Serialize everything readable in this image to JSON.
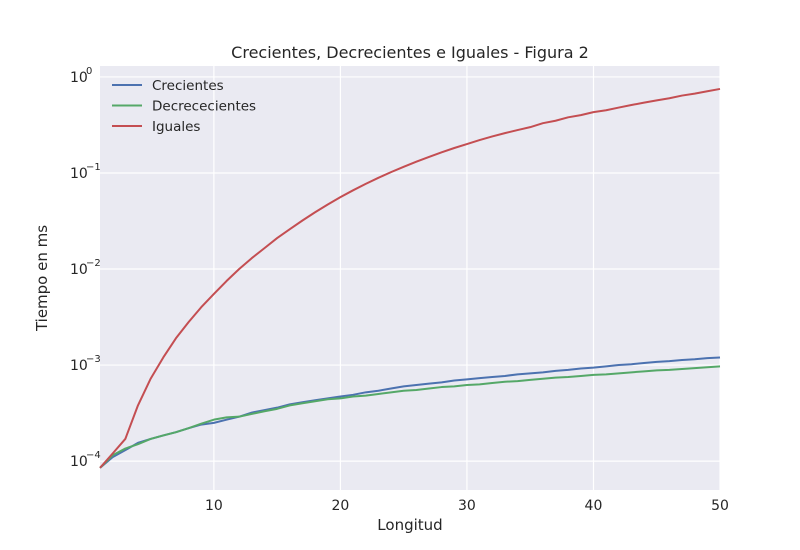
{
  "chart_data": {
    "type": "line",
    "title": "Crecientes, Decrecientes e Iguales - Figura 2",
    "xlabel": "Longitud",
    "ylabel": "Tiempo en ms",
    "xlim": [
      1,
      50
    ],
    "ylim": [
      5e-05,
      1.3
    ],
    "yscale": "log",
    "grid": true,
    "legend_position": "top-left",
    "x_ticks": [
      {
        "value": 10,
        "label": "10"
      },
      {
        "value": 20,
        "label": "20"
      },
      {
        "value": 30,
        "label": "30"
      },
      {
        "value": 40,
        "label": "40"
      },
      {
        "value": 50,
        "label": "50"
      }
    ],
    "y_ticks": [
      {
        "value": 0.0001,
        "base": "10",
        "exp": "−4"
      },
      {
        "value": 0.001,
        "base": "10",
        "exp": "−3"
      },
      {
        "value": 0.01,
        "base": "10",
        "exp": "−2"
      },
      {
        "value": 0.1,
        "base": "10",
        "exp": "−1"
      },
      {
        "value": 1,
        "base": "10",
        "exp": "0"
      }
    ],
    "x": [
      1,
      2,
      3,
      4,
      5,
      6,
      7,
      8,
      9,
      10,
      11,
      12,
      13,
      14,
      15,
      16,
      17,
      18,
      19,
      20,
      21,
      22,
      23,
      24,
      25,
      26,
      27,
      28,
      29,
      30,
      31,
      32,
      33,
      34,
      35,
      36,
      37,
      38,
      39,
      40,
      41,
      42,
      43,
      44,
      45,
      46,
      47,
      48,
      49,
      50
    ],
    "series": [
      {
        "name": "Crecientes",
        "color": "#4c72b0",
        "values": [
          8.5e-05,
          0.00011,
          0.00013,
          0.000155,
          0.00017,
          0.000185,
          0.0002,
          0.00022,
          0.00024,
          0.00025,
          0.00027,
          0.00029,
          0.00032,
          0.00034,
          0.00036,
          0.00039,
          0.00041,
          0.00043,
          0.00045,
          0.00047,
          0.00049,
          0.00052,
          0.00054,
          0.00057,
          0.0006,
          0.00062,
          0.00064,
          0.00066,
          0.00069,
          0.00071,
          0.00073,
          0.00075,
          0.00077,
          0.0008,
          0.00082,
          0.00084,
          0.00087,
          0.00089,
          0.00092,
          0.00094,
          0.00097,
          0.001,
          0.00102,
          0.00105,
          0.00108,
          0.0011,
          0.00113,
          0.00115,
          0.00118,
          0.0012
        ]
      },
      {
        "name": "Decrececientes",
        "color": "#55a868",
        "values": [
          8.5e-05,
          0.000115,
          0.000135,
          0.00015,
          0.00017,
          0.000185,
          0.0002,
          0.00022,
          0.000245,
          0.00027,
          0.000285,
          0.00029,
          0.00031,
          0.00033,
          0.00035,
          0.00038,
          0.0004,
          0.00042,
          0.00044,
          0.00045,
          0.00047,
          0.00048,
          0.0005,
          0.00052,
          0.00054,
          0.00055,
          0.00057,
          0.00059,
          0.0006,
          0.00062,
          0.00063,
          0.00065,
          0.00067,
          0.00068,
          0.0007,
          0.00072,
          0.00074,
          0.00075,
          0.00077,
          0.00079,
          0.0008,
          0.00082,
          0.00084,
          0.00086,
          0.00088,
          0.00089,
          0.00091,
          0.00093,
          0.00095,
          0.00097
        ]
      },
      {
        "name": "Iguales",
        "color": "#c44e52",
        "values": [
          8.5e-05,
          0.00012,
          0.00017,
          0.00038,
          0.00072,
          0.0012,
          0.0019,
          0.0028,
          0.004,
          0.0055,
          0.0075,
          0.01,
          0.013,
          0.0165,
          0.021,
          0.026,
          0.032,
          0.039,
          0.047,
          0.056,
          0.066,
          0.077,
          0.089,
          0.102,
          0.116,
          0.131,
          0.147,
          0.164,
          0.182,
          0.2,
          0.22,
          0.24,
          0.26,
          0.28,
          0.3,
          0.33,
          0.35,
          0.38,
          0.4,
          0.43,
          0.45,
          0.48,
          0.51,
          0.54,
          0.57,
          0.6,
          0.64,
          0.67,
          0.71,
          0.75
        ]
      }
    ]
  }
}
